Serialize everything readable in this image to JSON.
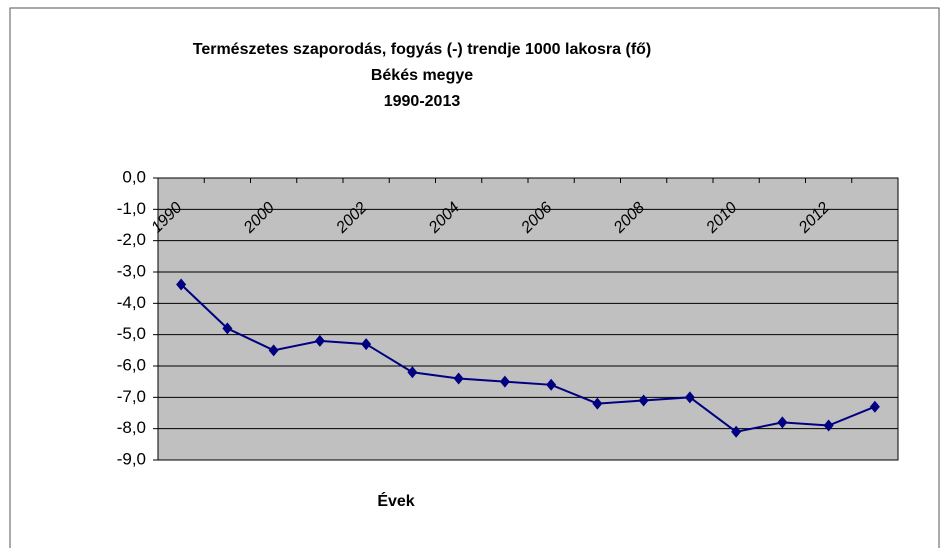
{
  "chart_data": {
    "type": "line",
    "title": "Természetes szaporodás, fogyás (-) trendje 1000 lakosra (fő)",
    "subtitle": [
      "Békés megye",
      "1990-2013"
    ],
    "x_label": "Évek",
    "categories": [
      "1990",
      null,
      "2000",
      null,
      "2002",
      null,
      "2004",
      null,
      "2006",
      null,
      "2008",
      null,
      "2010",
      null,
      "2012",
      null
    ],
    "series": [
      {
        "name": "Természetes szaporodás, fogyás",
        "color": "#000080",
        "values": [
          -3.4,
          -4.8,
          -5.5,
          -5.2,
          -5.3,
          -6.2,
          -6.4,
          -6.5,
          -6.6,
          -7.2,
          -7.1,
          -7.0,
          -8.1,
          -7.8,
          -7.9,
          -7.3
        ]
      }
    ],
    "ylim": [
      -9,
      0
    ],
    "yticks": [
      {
        "value": 0,
        "label": "0,0"
      },
      {
        "value": -1,
        "label": "-1,0"
      },
      {
        "value": -2,
        "label": "-2,0"
      },
      {
        "value": -3,
        "label": "-3,0"
      },
      {
        "value": -4,
        "label": "-4,0"
      },
      {
        "value": -5,
        "label": "-5,0"
      },
      {
        "value": -6,
        "label": "-6,0"
      },
      {
        "value": -7,
        "label": "-7,0"
      },
      {
        "value": -8,
        "label": "-8,0"
      },
      {
        "value": -9,
        "label": "-9,0"
      }
    ],
    "grid": true,
    "plot_background": "#c0c0c0"
  }
}
